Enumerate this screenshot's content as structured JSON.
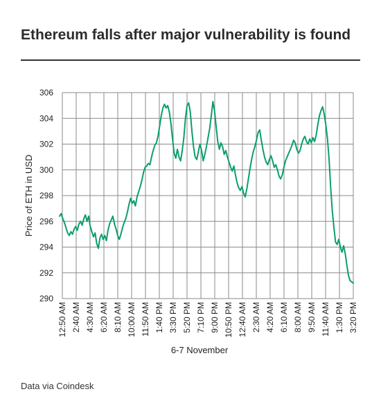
{
  "header": {
    "title": "Ethereum falls after major vulnerability is found"
  },
  "footer": {
    "source": "Data via Coindesk"
  },
  "chart_data": {
    "type": "line",
    "title": "Ethereum falls after major vulnerability is found",
    "xlabel": "6-7 November",
    "ylabel": "Price of ETH in USD",
    "ylim": [
      290,
      306
    ],
    "yticks": [
      290,
      292,
      294,
      296,
      298,
      300,
      302,
      304,
      306
    ],
    "x_tick_labels": [
      "12:50 AM",
      "2:40 AM",
      "4:30 AM",
      "6:20 AM",
      "8:10 AM",
      "10:00 AM",
      "11:50 AM",
      "1:40 PM",
      "3:30 PM",
      "5:20 PM",
      "7:10 PM",
      "9:00 PM",
      "10:50 PM",
      "12:40 AM",
      "2:30 AM",
      "4:20 AM",
      "6:10 AM",
      "8:00 AM",
      "9:50 AM",
      "11:40 AM",
      "1:30 PM",
      "3:20 PM"
    ],
    "grid": true,
    "line_color": "#0a9e6b",
    "series": [
      {
        "values": [
          296.4,
          296.6,
          296.2,
          295.9,
          295.5,
          295.1,
          294.9,
          295.2,
          295.0,
          295.4,
          295.6,
          295.3,
          295.8,
          296.0,
          295.7,
          296.2,
          296.5,
          296.0,
          296.4,
          295.6,
          295.2,
          294.8,
          295.1,
          294.3,
          293.9,
          294.7,
          295.0,
          294.6,
          294.9,
          294.5,
          295.3,
          295.8,
          296.1,
          296.4,
          295.8,
          295.4,
          294.9,
          294.6,
          295.0,
          295.5,
          295.9,
          296.2,
          296.7,
          297.3,
          297.8,
          297.4,
          297.6,
          297.2,
          297.9,
          298.3,
          298.7,
          299.2,
          299.8,
          300.2,
          300.3,
          300.5,
          300.4,
          301.0,
          301.5,
          301.9,
          302.1,
          302.6,
          303.4,
          304.2,
          304.8,
          305.1,
          304.8,
          305.0,
          304.5,
          303.6,
          302.4,
          301.3,
          300.9,
          301.6,
          301.0,
          300.7,
          301.5,
          302.5,
          304.0,
          305.0,
          305.2,
          304.5,
          303.0,
          301.8,
          301.0,
          300.8,
          301.4,
          302.0,
          301.5,
          300.7,
          301.2,
          301.8,
          302.5,
          303.2,
          304.2,
          305.3,
          304.6,
          303.4,
          302.2,
          301.6,
          302.1,
          301.8,
          301.2,
          301.5,
          301.0,
          300.6,
          300.2,
          299.9,
          300.3,
          299.6,
          299.0,
          298.6,
          298.4,
          298.7,
          298.2,
          297.9,
          298.5,
          299.3,
          300.1,
          300.8,
          301.4,
          301.8,
          302.3,
          302.9,
          303.1,
          302.3,
          301.6,
          301.0,
          300.6,
          300.4,
          300.8,
          301.1,
          300.7,
          300.2,
          300.4,
          300.0,
          299.5,
          299.3,
          299.6,
          300.2,
          300.7,
          301.0,
          301.3,
          301.6,
          301.9,
          302.3,
          302.1,
          301.6,
          301.3,
          301.5,
          302.0,
          302.4,
          302.6,
          302.2,
          302.0,
          302.4,
          302.1,
          302.5,
          302.2,
          302.7,
          303.5,
          304.2,
          304.6,
          304.9,
          304.3,
          303.5,
          302.4,
          300.8,
          298.6,
          296.8,
          295.5,
          294.4,
          294.2,
          294.6,
          294.0,
          293.6,
          294.1,
          293.5,
          292.6,
          291.8,
          291.4,
          291.3,
          291.2
        ]
      }
    ]
  }
}
